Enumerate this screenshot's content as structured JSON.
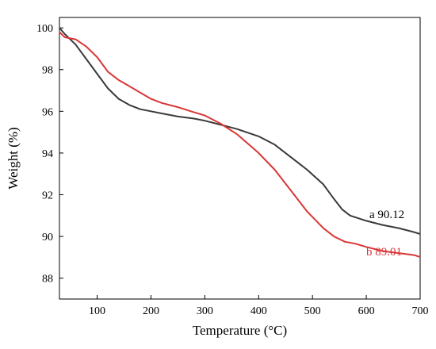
{
  "chart_data": {
    "type": "line",
    "title": "",
    "xlabel": "Temperature (°C)",
    "ylabel": "Weight (%)",
    "xlim": [
      30,
      700
    ],
    "ylim": [
      87,
      100.5
    ],
    "x_ticks": [
      100,
      200,
      300,
      400,
      500,
      600,
      700
    ],
    "y_ticks": [
      88,
      90,
      92,
      94,
      96,
      98,
      100
    ],
    "grid": false,
    "legend": "none",
    "series": [
      {
        "label": "a",
        "end_value": "a 90.12",
        "color": "#3a3a3a",
        "x": [
          30,
          40,
          60,
          80,
          100,
          120,
          140,
          160,
          180,
          200,
          220,
          250,
          280,
          300,
          330,
          360,
          400,
          430,
          460,
          490,
          520,
          540,
          555,
          570,
          600,
          630,
          660,
          690,
          700
        ],
        "y": [
          100.0,
          99.7,
          99.2,
          98.5,
          97.8,
          97.1,
          96.6,
          96.3,
          96.1,
          96.0,
          95.9,
          95.75,
          95.65,
          95.55,
          95.35,
          95.15,
          94.8,
          94.4,
          93.8,
          93.2,
          92.5,
          91.8,
          91.3,
          91.0,
          90.75,
          90.55,
          90.4,
          90.2,
          90.12
        ]
      },
      {
        "label": "b",
        "end_value": "b 89.01",
        "color": "#d93636",
        "x": [
          30,
          40,
          60,
          80,
          100,
          120,
          140,
          160,
          180,
          200,
          220,
          250,
          280,
          300,
          330,
          360,
          400,
          430,
          460,
          490,
          520,
          540,
          560,
          580,
          600,
          630,
          660,
          690,
          700
        ],
        "y": [
          99.8,
          99.55,
          99.45,
          99.1,
          98.6,
          97.9,
          97.5,
          97.2,
          96.9,
          96.6,
          96.4,
          96.2,
          95.95,
          95.8,
          95.4,
          94.9,
          94.0,
          93.2,
          92.2,
          91.2,
          90.4,
          90.0,
          89.75,
          89.65,
          89.5,
          89.3,
          89.2,
          89.1,
          89.01
        ]
      }
    ]
  }
}
